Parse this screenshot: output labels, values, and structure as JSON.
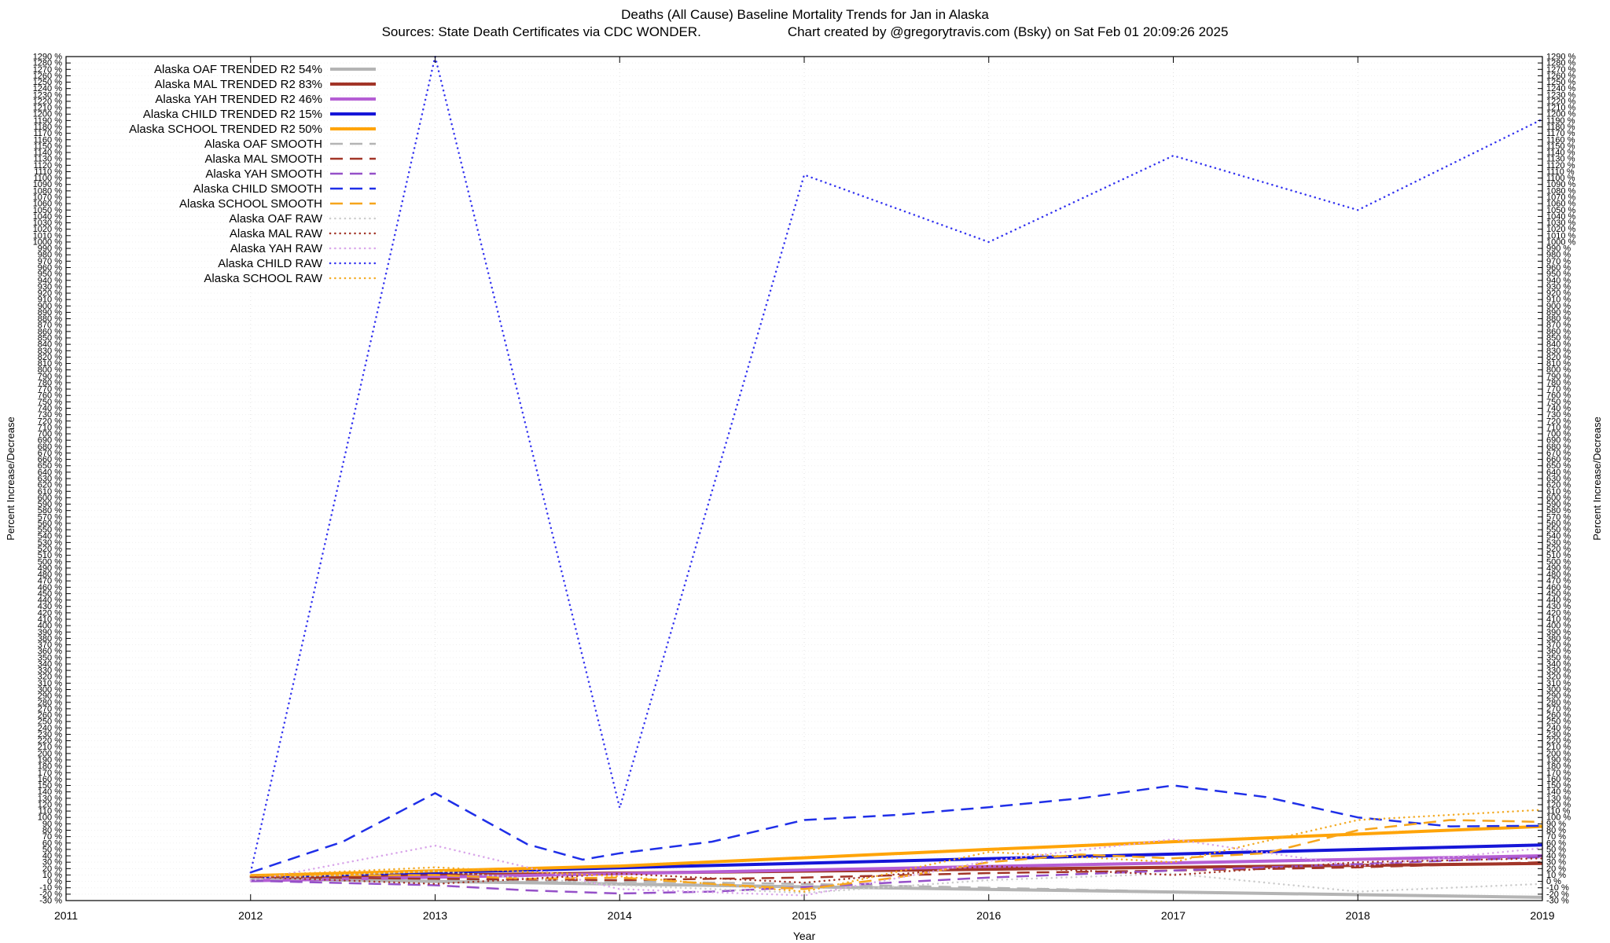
{
  "title": "Deaths (All Cause)  Baseline Mortality Trends for Jan in Alaska",
  "subtitle_sources": "Sources: State Death Certificates via CDC WONDER.",
  "subtitle_credit": "Chart created by @gregorytravis.com (Bsky) on Sat Feb 01 20:09:26 2025",
  "chart_data": {
    "type": "line",
    "title": "Deaths (All Cause)  Baseline Mortality Trends for Jan in Alaska",
    "xlabel": "Year",
    "ylabel_left": "Percent Increase/Decrease",
    "ylabel_right": "Percent Increase/Decrease",
    "xlim": [
      2011,
      2019
    ],
    "ylim": [
      -30,
      1290
    ],
    "ytick_step": 10,
    "ytick_suffix": " %",
    "xticks": [
      2011,
      2012,
      2013,
      2014,
      2015,
      2016,
      2017,
      2018,
      2019
    ],
    "grid": true,
    "legend_position": "top-left-inside",
    "series": [
      {
        "id": "oaf-trended",
        "name": "Alaska OAF TRENDED R2 54%",
        "color": "#b4b4b4",
        "style": "solid",
        "width": 4,
        "points": [
          [
            2012,
            4
          ],
          [
            2019,
            -25
          ]
        ]
      },
      {
        "id": "mal-trended",
        "name": "Alaska MAL TRENDED R2 83%",
        "color": "#a23528",
        "style": "solid",
        "width": 4,
        "points": [
          [
            2012,
            7
          ],
          [
            2019,
            28
          ]
        ]
      },
      {
        "id": "yah-trended",
        "name": "Alaska YAH TRENDED R2 46%",
        "color": "#b55ed4",
        "style": "solid",
        "width": 4,
        "points": [
          [
            2012,
            1
          ],
          [
            2019,
            40
          ]
        ]
      },
      {
        "id": "child-trended",
        "name": "Alaska CHILD TRENDED R2 15%",
        "color": "#1616d8",
        "style": "solid",
        "width": 4,
        "points": [
          [
            2012,
            7
          ],
          [
            2019,
            57
          ]
        ]
      },
      {
        "id": "school-trended",
        "name": "Alaska SCHOOL TRENDED R2 50%",
        "color": "#ffa408",
        "style": "solid",
        "width": 4,
        "points": [
          [
            2012,
            9
          ],
          [
            2014,
            24
          ],
          [
            2016,
            50
          ],
          [
            2019,
            86
          ]
        ]
      },
      {
        "id": "oaf-smooth",
        "name": "Alaska OAF SMOOTH",
        "color": "#b4b4b4",
        "style": "dashed",
        "width": 2.5,
        "points": [
          [
            2012,
            4
          ],
          [
            2013,
            3
          ],
          [
            2014,
            0
          ],
          [
            2015,
            -4
          ],
          [
            2016,
            -10
          ],
          [
            2017,
            -16
          ],
          [
            2018,
            -21
          ],
          [
            2019,
            -25
          ]
        ]
      },
      {
        "id": "mal-smooth",
        "name": "Alaska MAL SMOOTH",
        "color": "#a23528",
        "style": "dashed",
        "width": 2.5,
        "points": [
          [
            2012,
            7
          ],
          [
            2013,
            4
          ],
          [
            2014,
            2
          ],
          [
            2015,
            6
          ],
          [
            2016,
            13
          ],
          [
            2017,
            17
          ],
          [
            2018,
            22
          ],
          [
            2019,
            30
          ]
        ]
      },
      {
        "id": "yah-smooth",
        "name": "Alaska YAH SMOOTH",
        "color": "#9550c8",
        "style": "dashed",
        "width": 2.5,
        "points": [
          [
            2012,
            1
          ],
          [
            2013,
            -6
          ],
          [
            2013.5,
            -14
          ],
          [
            2014,
            -19
          ],
          [
            2014.5,
            -16
          ],
          [
            2015,
            -9
          ],
          [
            2016,
            6
          ],
          [
            2017,
            17
          ],
          [
            2018,
            27
          ],
          [
            2019,
            38
          ]
        ]
      },
      {
        "id": "child-smooth",
        "name": "Alaska CHILD SMOOTH",
        "color": "#1f2fe8",
        "style": "dashed",
        "width": 2.5,
        "points": [
          [
            2012,
            14
          ],
          [
            2012.5,
            62
          ],
          [
            2013,
            138
          ],
          [
            2013.5,
            58
          ],
          [
            2013.8,
            34
          ],
          [
            2014,
            44
          ],
          [
            2014.5,
            62
          ],
          [
            2015,
            96
          ],
          [
            2015.5,
            104
          ],
          [
            2016,
            116
          ],
          [
            2016.5,
            130
          ],
          [
            2017,
            150
          ],
          [
            2017.5,
            132
          ],
          [
            2018,
            100
          ],
          [
            2018.5,
            86
          ],
          [
            2019,
            87
          ]
        ]
      },
      {
        "id": "school-smooth",
        "name": "Alaska SCHOOL SMOOTH",
        "color": "#f6a51c",
        "style": "dashed",
        "width": 2.5,
        "points": [
          [
            2012,
            9
          ],
          [
            2013,
            10
          ],
          [
            2013.5,
            4
          ],
          [
            2014,
            6
          ],
          [
            2014.5,
            -4
          ],
          [
            2015,
            -12
          ],
          [
            2015.5,
            6
          ],
          [
            2016,
            30
          ],
          [
            2016.5,
            42
          ],
          [
            2017,
            36
          ],
          [
            2017.5,
            44
          ],
          [
            2018,
            80
          ],
          [
            2018.5,
            96
          ],
          [
            2019,
            93
          ]
        ]
      },
      {
        "id": "oaf-raw",
        "name": "Alaska OAF RAW",
        "color": "#cccccc",
        "style": "dotted",
        "width": 2.5,
        "points": [
          [
            2012,
            4
          ],
          [
            2013,
            16
          ],
          [
            2014,
            -6
          ],
          [
            2015,
            -18
          ],
          [
            2016,
            2
          ],
          [
            2017,
            12
          ],
          [
            2018,
            -16
          ],
          [
            2019,
            -4
          ]
        ]
      },
      {
        "id": "mal-raw",
        "name": "Alaska MAL RAW",
        "color": "#a23528",
        "style": "dotted",
        "width": 2.5,
        "points": [
          [
            2012,
            7
          ],
          [
            2013,
            -4
          ],
          [
            2014,
            12
          ],
          [
            2015,
            -2
          ],
          [
            2016,
            24
          ],
          [
            2017,
            10
          ],
          [
            2018,
            30
          ],
          [
            2019,
            36
          ]
        ]
      },
      {
        "id": "yah-raw",
        "name": "Alaska YAH RAW",
        "color": "#d9a6ea",
        "style": "dotted",
        "width": 2.5,
        "points": [
          [
            2012,
            1
          ],
          [
            2013,
            56
          ],
          [
            2014,
            -12
          ],
          [
            2015,
            -22
          ],
          [
            2016,
            32
          ],
          [
            2017,
            66
          ],
          [
            2018,
            24
          ],
          [
            2019,
            52
          ]
        ]
      },
      {
        "id": "child-raw",
        "name": "Alaska CHILD RAW",
        "color": "#3535f0",
        "style": "dotted",
        "width": 2.5,
        "points": [
          [
            2012,
            14
          ],
          [
            2013,
            1290
          ],
          [
            2014,
            115
          ],
          [
            2015,
            1105
          ],
          [
            2016,
            1000
          ],
          [
            2017,
            1135
          ],
          [
            2018,
            1050
          ],
          [
            2019,
            1192
          ]
        ]
      },
      {
        "id": "school-raw",
        "name": "Alaska SCHOOL RAW",
        "color": "#f3ab26",
        "style": "dotted",
        "width": 2.5,
        "points": [
          [
            2012,
            9
          ],
          [
            2013,
            22
          ],
          [
            2014,
            8
          ],
          [
            2015,
            -16
          ],
          [
            2016,
            46
          ],
          [
            2017,
            30
          ],
          [
            2018,
            96
          ],
          [
            2019,
            112
          ]
        ]
      }
    ]
  }
}
